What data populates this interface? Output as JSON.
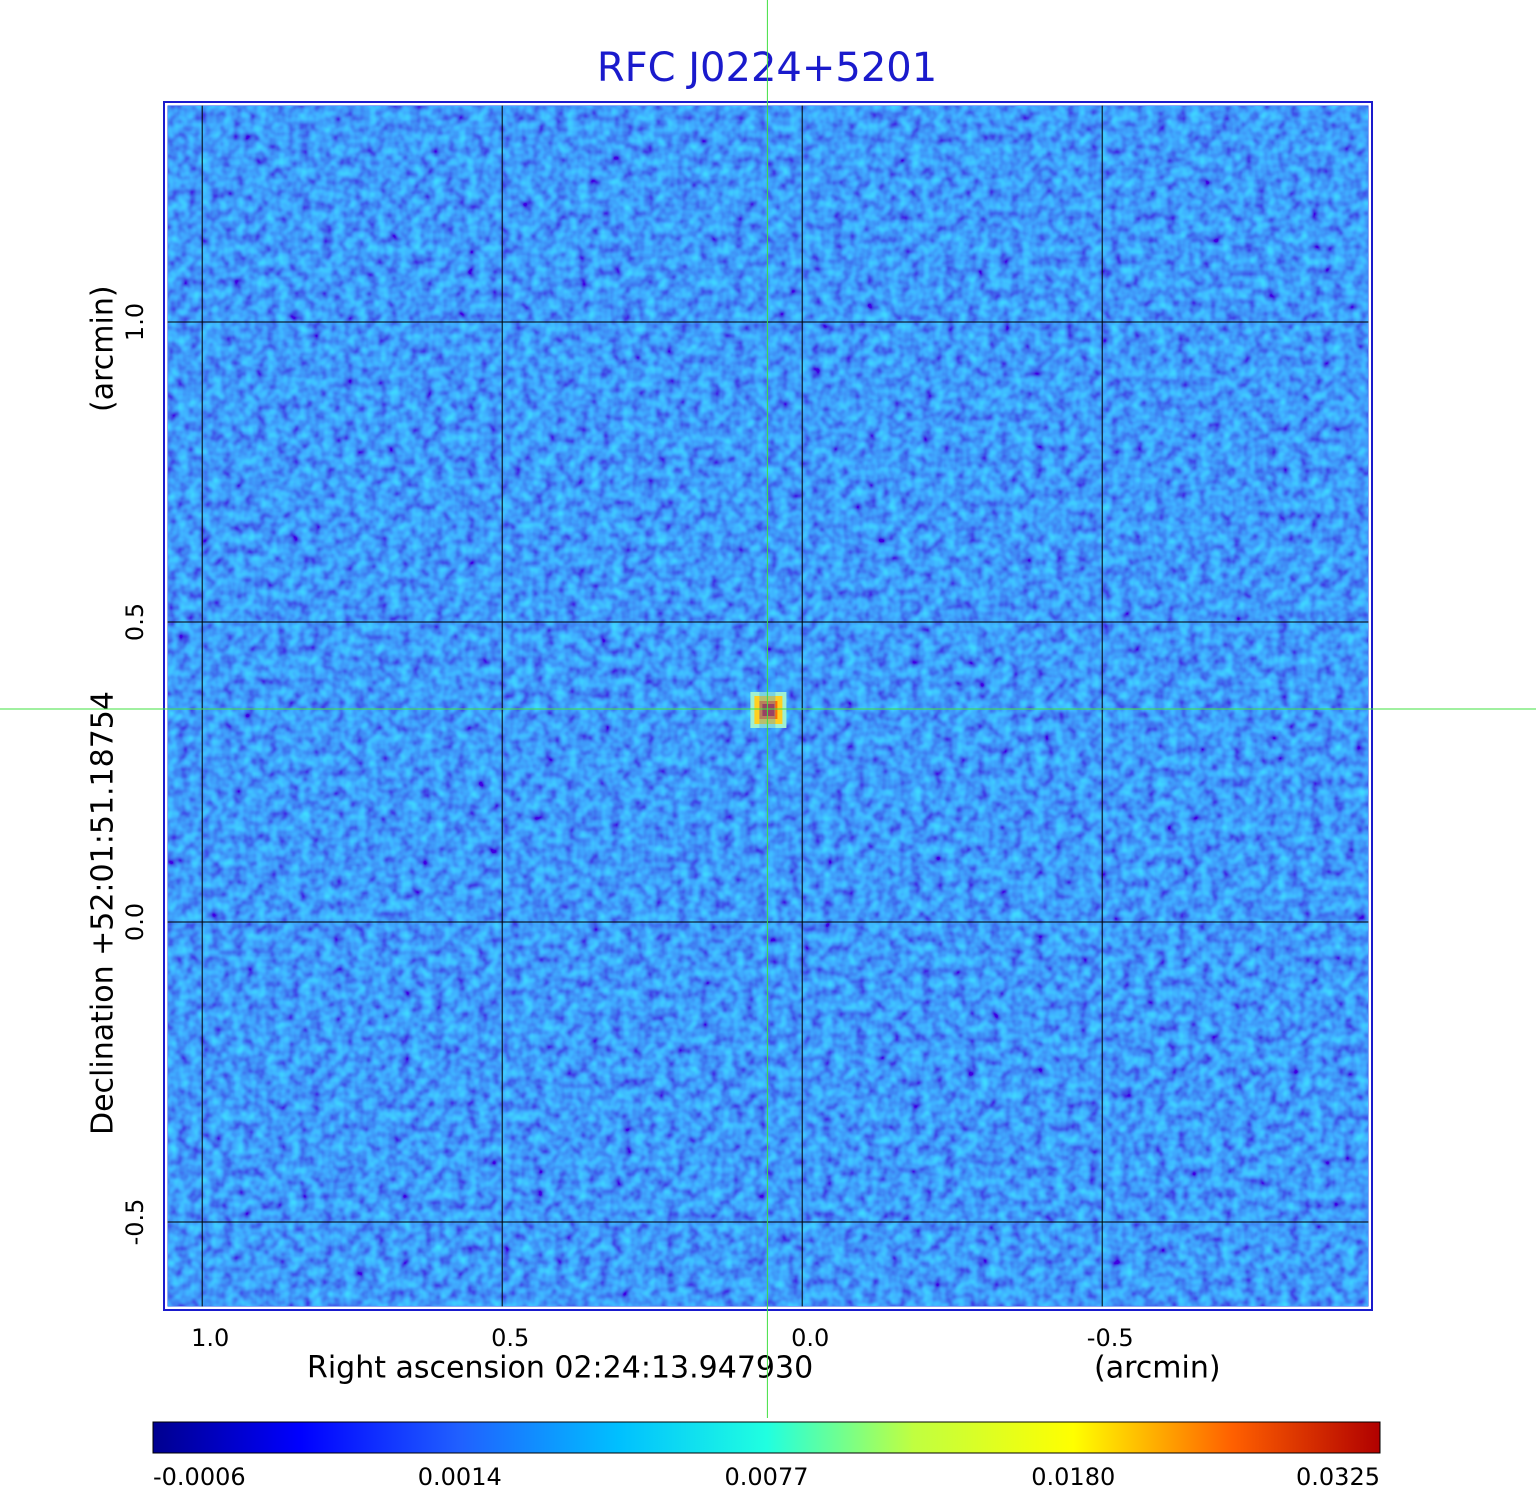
{
  "chart_data": {
    "type": "image",
    "title": "RFC J0224+5201",
    "x_label": "Right ascension  02:24:13.947930",
    "x_unit": "(arcmin)",
    "y_label": "Declination  +52:01:51.18754",
    "y_unit": "(arcmin)",
    "xlim": [
      1.062,
      -0.948
    ],
    "ylim": [
      -0.645,
      1.365
    ],
    "xticks": [
      {
        "value": 1,
        "label": "1.0"
      },
      0.5,
      {
        "value": 0,
        "label": "0.0"
      },
      -0.5
    ],
    "yticks": [
      {
        "value": 1,
        "label": "1.0"
      },
      0.5,
      {
        "value": 0,
        "label": "0.0"
      },
      -0.5
    ],
    "grid": true,
    "crosshair": {
      "x": 0.058,
      "y": 0.355
    },
    "colorbar_ticks": [
      -0.0006,
      0.0014,
      0.0077,
      {
        "value": 0.018,
        "label": "0.0180"
      },
      0.0325
    ]
  }
}
